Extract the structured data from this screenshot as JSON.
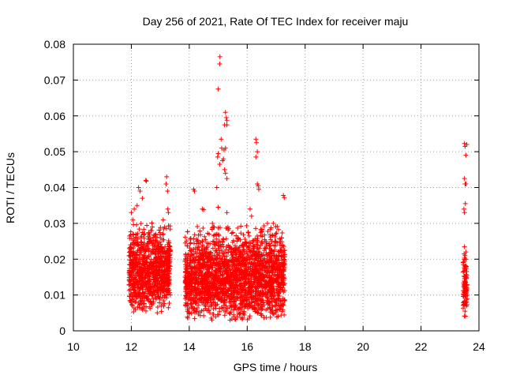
{
  "chart_data": {
    "type": "scatter",
    "title": "Day 256 of 2021, Rate Of TEC Index for receiver maju",
    "xlabel": "GPS time / hours",
    "ylabel": "ROTI / TECUs",
    "xlim": [
      10,
      24
    ],
    "ylim": [
      0,
      0.08
    ],
    "xticks": [
      10,
      12,
      14,
      16,
      18,
      20,
      22,
      24
    ],
    "yticks": [
      0,
      0.01,
      0.02,
      0.03,
      0.04,
      0.05,
      0.06,
      0.07,
      0.08
    ],
    "xtick_labels": [
      "10",
      "12",
      "14",
      "16",
      "18",
      "20",
      "22",
      "24"
    ],
    "ytick_labels": [
      "0",
      "0.01",
      "0.02",
      "0.03",
      "0.04",
      "0.05",
      "0.06",
      "0.07",
      "0.08"
    ],
    "grid": true,
    "marker": "+",
    "marker_color": "#ff0000",
    "series": [
      {
        "name": "ROTI",
        "clusters": [
          {
            "x_start": 11.92,
            "x_end": 13.35,
            "base_min": 0.005,
            "base_max": 0.028
          },
          {
            "x_start": 13.85,
            "x_end": 17.3,
            "base_min": 0.003,
            "base_max": 0.027
          },
          {
            "x_start": 23.45,
            "x_end": 23.6,
            "base_min": 0.004,
            "base_max": 0.02
          }
        ],
        "outliers": [
          [
            12.0,
            0.033
          ],
          [
            12.05,
            0.031
          ],
          [
            12.1,
            0.034
          ],
          [
            12.2,
            0.035
          ],
          [
            12.25,
            0.04
          ],
          [
            12.3,
            0.039
          ],
          [
            12.38,
            0.037
          ],
          [
            12.5,
            0.042
          ],
          [
            12.52,
            0.0418
          ],
          [
            12.7,
            0.028
          ],
          [
            12.85,
            0.027
          ],
          [
            13.1,
            0.031
          ],
          [
            13.2,
            0.041
          ],
          [
            13.22,
            0.043
          ],
          [
            13.25,
            0.039
          ],
          [
            13.26,
            0.034
          ],
          [
            13.28,
            0.033
          ],
          [
            14.15,
            0.0395
          ],
          [
            14.18,
            0.039
          ],
          [
            14.45,
            0.034
          ],
          [
            14.5,
            0.0338
          ],
          [
            14.8,
            0.03
          ],
          [
            14.83,
            0.029
          ],
          [
            14.95,
            0.04
          ],
          [
            14.98,
            0.0485
          ],
          [
            15.0,
            0.0495
          ],
          [
            15.05,
            0.0465
          ],
          [
            15.1,
            0.0535
          ],
          [
            15.12,
            0.051
          ],
          [
            15.0,
            0.0675
          ],
          [
            15.05,
            0.0745
          ],
          [
            15.06,
            0.0765
          ],
          [
            15.25,
            0.061
          ],
          [
            15.28,
            0.0595
          ],
          [
            15.3,
            0.0588
          ],
          [
            15.22,
            0.0575
          ],
          [
            15.3,
            0.0575
          ],
          [
            15.15,
            0.0475
          ],
          [
            15.18,
            0.048
          ],
          [
            15.22,
            0.045
          ],
          [
            15.25,
            0.044
          ],
          [
            15.2,
            0.0505
          ],
          [
            15.25,
            0.051
          ],
          [
            15.3,
            0.0425
          ],
          [
            15.0,
            0.0345
          ],
          [
            15.3,
            0.033
          ],
          [
            16.1,
            0.034
          ],
          [
            16.15,
            0.032
          ],
          [
            16.3,
            0.0535
          ],
          [
            16.32,
            0.0525
          ],
          [
            16.35,
            0.05
          ],
          [
            16.3,
            0.0485
          ],
          [
            16.35,
            0.041
          ],
          [
            16.38,
            0.0405
          ],
          [
            16.4,
            0.0395
          ],
          [
            16.7,
            0.03
          ],
          [
            16.9,
            0.03
          ],
          [
            17.25,
            0.0378
          ],
          [
            17.28,
            0.0372
          ],
          [
            23.5,
            0.0523
          ],
          [
            23.52,
            0.0515
          ],
          [
            23.58,
            0.052
          ],
          [
            23.55,
            0.049
          ],
          [
            23.5,
            0.0425
          ],
          [
            23.52,
            0.041
          ],
          [
            23.55,
            0.041
          ],
          [
            23.53,
            0.0355
          ],
          [
            23.48,
            0.034
          ],
          [
            23.5,
            0.033
          ],
          [
            23.5,
            0.0235
          ],
          [
            23.55,
            0.022
          ],
          [
            23.52,
            0.021
          ],
          [
            23.55,
            0.02
          ]
        ]
      }
    ]
  }
}
